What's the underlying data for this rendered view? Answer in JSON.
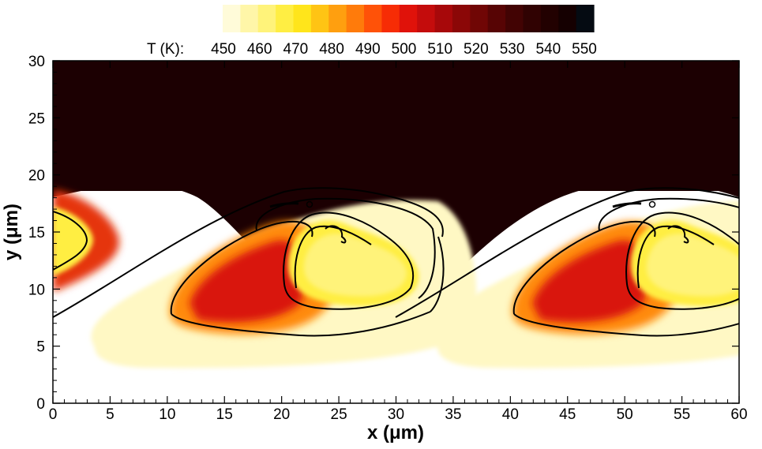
{
  "chart_data": {
    "type": "contour",
    "xlabel": "x (μm)",
    "ylabel": "y (μm)",
    "xlim": [
      0,
      60
    ],
    "ylim": [
      0,
      30
    ],
    "x_ticks": [
      0,
      5,
      10,
      15,
      20,
      25,
      30,
      35,
      40,
      45,
      50,
      55,
      60
    ],
    "y_ticks": [
      0,
      5,
      10,
      15,
      20,
      25,
      30
    ],
    "colorbar": {
      "title": "T (K):",
      "ticks": [
        450,
        460,
        470,
        480,
        490,
        500,
        510,
        520,
        530,
        540,
        550
      ],
      "colors": [
        "#fffbd9",
        "#fff6a8",
        "#fff37a",
        "#ffee43",
        "#ffe51b",
        "#ffc414",
        "#ff9f0f",
        "#ff7b0b",
        "#ff5208",
        "#f72c05",
        "#e0120a",
        "#c40c0c",
        "#a7080a",
        "#8b0707",
        "#700605",
        "#570404",
        "#420303",
        "#300202",
        "#220101",
        "#150001",
        "#050b12"
      ],
      "position": "top"
    },
    "period_x": 30,
    "background_temperature": 550,
    "structures": [
      {
        "x": 0,
        "description": "hot-spot edge at left boundary"
      },
      {
        "x": 25,
        "description": "cool core / vortex"
      },
      {
        "x": 55,
        "description": "cool core / vortex"
      }
    ],
    "grid": false
  }
}
